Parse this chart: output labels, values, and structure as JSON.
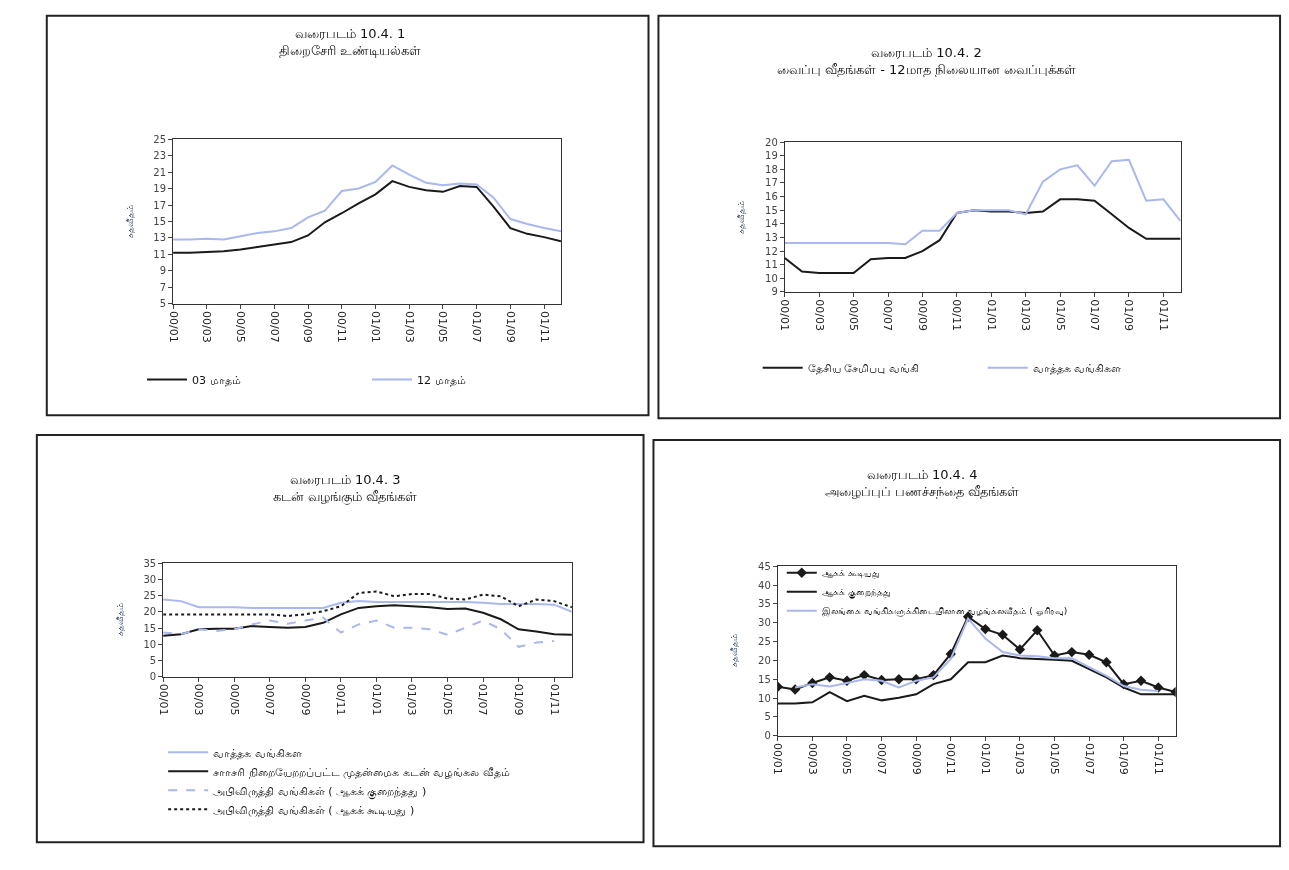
{
  "chart_data": [
    {
      "type": "line",
      "title": "வரைபடம் 10.4. 1",
      "subtitle": "திறைசேரி உண்டியல்கள்",
      "ylabel": "சதவீதம்",
      "categories": [
        "00/01",
        null,
        "00/03",
        null,
        "00/05",
        null,
        "00/07",
        null,
        "00/09",
        null,
        "00/11",
        null,
        "01/01",
        null,
        "01/03",
        null,
        "01/05",
        null,
        "01/07",
        null,
        "01/09",
        null,
        "01/11",
        null
      ],
      "ylim": [
        5,
        25
      ],
      "yticks": [
        5,
        7,
        9,
        11,
        13,
        15,
        17,
        19,
        21,
        23,
        25
      ],
      "legend": "bottom",
      "series": [
        {
          "name": "03 மாதம்",
          "color": "#1a1a1a",
          "line_style": "solid",
          "values": [
            11.2,
            11.2,
            11.3,
            11.4,
            11.6,
            11.9,
            12.2,
            12.5,
            13.3,
            14.9,
            16.0,
            17.2,
            18.3,
            19.9,
            19.2,
            18.8,
            18.6,
            19.3,
            19.2,
            16.8,
            14.2,
            13.5,
            13.1,
            12.6
          ]
        },
        {
          "name": "12 மாதம்",
          "color": "#a9b8ee",
          "line_style": "solid",
          "values": [
            12.8,
            12.8,
            12.9,
            12.8,
            13.2,
            13.6,
            13.8,
            14.2,
            15.5,
            16.3,
            18.7,
            19.0,
            19.8,
            21.8,
            20.7,
            19.7,
            19.4,
            19.6,
            19.5,
            17.9,
            15.3,
            14.7,
            14.2,
            13.8
          ]
        }
      ]
    },
    {
      "type": "line",
      "title": "வரைபடம் 10.4. 2",
      "subtitle": "வைப்பு வீதங்கள் - 12மாத நிலையான வைப்புக்கள்",
      "ylabel": "சதவீதம்",
      "categories": [
        "00/01",
        null,
        "00/03",
        null,
        "00/05",
        null,
        "00/07",
        null,
        "00/09",
        null,
        "00/11",
        null,
        "01/01",
        null,
        "01/03",
        null,
        "01/05",
        null,
        "01/07",
        null,
        "01/09",
        null,
        "01/11",
        null
      ],
      "ylim": [
        9,
        20
      ],
      "yticks": [
        9,
        10,
        11,
        12,
        13,
        14,
        15,
        16,
        17,
        18,
        19,
        20
      ],
      "legend": "bottom",
      "series": [
        {
          "name": "தேசிய சேமிபபு வங்கி",
          "color": "#1a1a1a",
          "line_style": "solid",
          "values": [
            11.5,
            10.5,
            10.4,
            10.4,
            10.4,
            11.4,
            11.5,
            11.5,
            12.0,
            12.8,
            14.8,
            15.0,
            14.9,
            14.9,
            14.8,
            14.9,
            15.8,
            15.8,
            15.7,
            14.7,
            13.7,
            12.9,
            12.9,
            12.9
          ]
        },
        {
          "name": "வாத்தக வங்கிகள",
          "color": "#a9b8ee",
          "line_style": "solid",
          "values": [
            12.6,
            12.6,
            12.6,
            12.6,
            12.6,
            12.6,
            12.6,
            12.5,
            13.5,
            13.5,
            14.8,
            15.0,
            15.0,
            15.0,
            14.7,
            17.1,
            18.0,
            18.3,
            16.8,
            18.6,
            18.7,
            15.7,
            15.8,
            14.2
          ]
        }
      ]
    },
    {
      "type": "line",
      "title": "வரைபடம் 10.4. 3",
      "subtitle": "கடன் வழங்கும் வீதங்கள்",
      "ylabel": "சதவீதம்",
      "categories": [
        "00/01",
        null,
        "00/03",
        null,
        "00/05",
        null,
        "00/07",
        null,
        "00/09",
        null,
        "00/11",
        null,
        "01/01",
        null,
        "01/03",
        null,
        "01/05",
        null,
        "01/07",
        null,
        "01/09",
        null,
        "01/11",
        null
      ],
      "ylim": [
        0,
        35
      ],
      "yticks": [
        0,
        5,
        10,
        15,
        20,
        25,
        30,
        35
      ],
      "legend": "bottom",
      "series": [
        {
          "name": "வாத்தக வங்கிகள",
          "color": "#a9b8ee",
          "line_style": "solid",
          "values": [
            23.8,
            23.3,
            21.4,
            21.4,
            21.4,
            21.2,
            21.2,
            21.2,
            21.2,
            21.2,
            22.8,
            23.3,
            23.0,
            23.0,
            23.0,
            23.0,
            23.0,
            23.0,
            22.8,
            22.4,
            22.4,
            22.4,
            22.2,
            20.0
          ]
        },
        {
          "name": "சாாசரி நிறையேறறப்பட்ட முதன்மைக கடன் வழங்கல வீதம்",
          "color": "#1a1a1a",
          "line_style": "solid",
          "values": [
            12.6,
            13.1,
            14.6,
            14.8,
            14.8,
            15.6,
            15.3,
            15.1,
            15.3,
            16.6,
            19.2,
            21.2,
            21.7,
            22.0,
            21.7,
            21.4,
            20.9,
            21.0,
            19.7,
            17.7,
            14.6,
            13.9,
            13.1,
            12.9
          ]
        },
        {
          "name": "அபிவிருத்தி வங்கிகள் ( ஆகக் குறைந்தது )",
          "color": "#a9b8ee",
          "line_style": "dashed",
          "values": [
            13.6,
            13.1,
            14.6,
            14.1,
            14.6,
            16.1,
            17.3,
            16.3,
            17.3,
            18.2,
            13.6,
            16.1,
            17.3,
            15.1,
            15.1,
            14.6,
            12.9,
            15.1,
            17.3,
            14.6,
            9.2,
            10.5,
            11.0,
            null
          ]
        },
        {
          "name": "அபிவிருத்தி வங்கிகள் ( ஆகக் கூடியது )",
          "color": "#1a1a1a",
          "line_style": "dotted",
          "values": [
            19.2,
            19.2,
            19.2,
            19.2,
            19.2,
            19.2,
            19.2,
            18.7,
            19.2,
            20.2,
            21.7,
            25.8,
            26.3,
            24.8,
            25.5,
            25.5,
            24.1,
            23.8,
            25.3,
            24.8,
            21.7,
            23.8,
            23.3,
            21.4
          ]
        }
      ]
    },
    {
      "type": "line",
      "title": "வரைபடம் 10.4. 4",
      "subtitle": "அழைப்புப் பணச்சந்தை வீதங்கள்",
      "ylabel": "சதவீதம்",
      "categories": [
        "00/01",
        null,
        "00/03",
        null,
        "00/05",
        null,
        "00/07",
        null,
        "00/09",
        null,
        "00/11",
        null,
        "01/01",
        null,
        "01/03",
        null,
        "01/05",
        null,
        "01/07",
        null,
        "01/09",
        null,
        "01/11",
        null
      ],
      "ylim": [
        0,
        45
      ],
      "yticks": [
        0,
        5,
        10,
        15,
        20,
        25,
        30,
        35,
        40,
        45
      ],
      "legend": "top left",
      "series": [
        {
          "name": "ஆகக் கூடியது",
          "color": "#1a1a1a",
          "line_style": "solid",
          "marker": "diamond",
          "values": [
            13.0,
            12.3,
            14.0,
            15.5,
            14.6,
            16.1,
            14.8,
            15.0,
            15.0,
            16.1,
            21.7,
            31.6,
            28.3,
            26.8,
            22.9,
            28.0,
            21.3,
            22.2,
            21.5,
            19.5,
            13.7,
            14.6,
            12.8,
            11.6
          ]
        },
        {
          "name": "ஆகக் குறைந்தது",
          "color": "#1a1a1a",
          "line_style": "solid",
          "values": [
            8.6,
            8.6,
            8.9,
            11.6,
            9.2,
            10.6,
            9.4,
            10.1,
            11.0,
            13.7,
            15.0,
            19.5,
            19.5,
            21.3,
            20.6,
            20.4,
            20.2,
            19.9,
            17.7,
            15.5,
            12.8,
            11.0,
            11.0,
            11.0
          ]
        },
        {
          "name": "இலங்கை வங்கிகளுக்கிடையிலான வழங்கலவீதம் ( ஓரிரவு)",
          "color": "#a9b8ee",
          "line_style": "solid",
          "values": [
            null,
            12.8,
            13.7,
            13.1,
            14.0,
            15.0,
            14.6,
            12.8,
            14.6,
            15.5,
            20.4,
            31.1,
            25.8,
            22.2,
            21.3,
            21.1,
            20.6,
            20.6,
            18.2,
            15.9,
            13.2,
            12.2,
            11.9,
            null
          ]
        }
      ]
    }
  ]
}
